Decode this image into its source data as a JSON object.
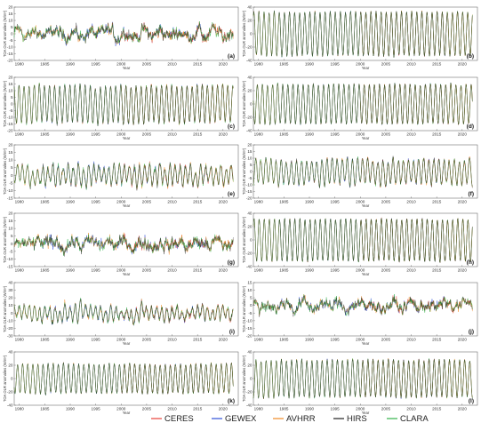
{
  "chart_data": {
    "type": "line",
    "grid": false,
    "legend": {
      "placement": "bottom"
    },
    "xlabel": "Year",
    "ylabel": "TOA OLR anomalies (W/m²)",
    "xlim": [
      1979,
      2023
    ],
    "xticks": [
      1980,
      1985,
      1990,
      1995,
      2000,
      2005,
      2010,
      2015,
      2020
    ],
    "series": [
      {
        "name": "CERES",
        "color": "#e8413a",
        "start": 2000,
        "end": 2022
      },
      {
        "name": "GEWEX",
        "color": "#2f4fd8",
        "start": 1984,
        "end": 2017
      },
      {
        "name": "AVHRR",
        "color": "#f08a24",
        "start": 1979,
        "end": 2022
      },
      {
        "name": "HIRS",
        "color": "#222222",
        "start": 1979,
        "end": 2022
      },
      {
        "name": "CLARA",
        "color": "#33b24a",
        "start": 1979,
        "end": 2022
      }
    ],
    "panels": [
      {
        "label": "(a)",
        "ylim": [
          -20,
          20
        ],
        "yticks": [
          -20,
          -15,
          -10,
          -5,
          0,
          5,
          10,
          15,
          20
        ],
        "amplitude": 4,
        "noise": 5,
        "seasonal": false
      },
      {
        "label": "(b)",
        "ylim": [
          -40,
          40
        ],
        "yticks": [
          -40,
          -20,
          0,
          20,
          40
        ],
        "amplitude": 33,
        "noise": 1.5,
        "seasonal": true
      },
      {
        "label": "(c)",
        "ylim": [
          -20,
          20
        ],
        "yticks": [
          -20,
          -15,
          -10,
          -5,
          0,
          5,
          10,
          15,
          20
        ],
        "amplitude": 14,
        "noise": 1.5,
        "seasonal": true
      },
      {
        "label": "(d)",
        "ylim": [
          -40,
          40
        ],
        "yticks": [
          -40,
          -20,
          0,
          20,
          40
        ],
        "amplitude": 30,
        "noise": 1.5,
        "seasonal": true
      },
      {
        "label": "(e)",
        "ylim": [
          -15,
          20
        ],
        "yticks": [
          -15,
          -10,
          -5,
          0,
          5,
          10,
          15,
          20
        ],
        "amplitude": 6,
        "noise": 3,
        "seasonal": true
      },
      {
        "label": "(f)",
        "ylim": [
          -20,
          20
        ],
        "yticks": [
          -20,
          -15,
          -10,
          -5,
          0,
          5,
          10,
          15,
          20
        ],
        "amplitude": 9,
        "noise": 2.5,
        "seasonal": true
      },
      {
        "label": "(g)",
        "ylim": [
          -15,
          20
        ],
        "yticks": [
          -15,
          -10,
          -5,
          0,
          5,
          10,
          15,
          20
        ],
        "amplitude": 2,
        "noise": 4.5,
        "seasonal": false
      },
      {
        "label": "(h)",
        "ylim": [
          -40,
          40
        ],
        "yticks": [
          -40,
          -20,
          0,
          20,
          40
        ],
        "amplitude": 32,
        "noise": 1.5,
        "seasonal": true
      },
      {
        "label": "(i)",
        "ylim": [
          -30,
          40
        ],
        "yticks": [
          -30,
          -20,
          -10,
          0,
          10,
          20,
          30,
          40
        ],
        "amplitude": 8,
        "noise": 6,
        "seasonal": true
      },
      {
        "label": "(j)",
        "ylim": [
          -20,
          15
        ],
        "yticks": [
          -20,
          -15,
          -10,
          -5,
          0,
          5,
          10,
          15
        ],
        "amplitude": 3,
        "noise": 4,
        "seasonal": false
      },
      {
        "label": "(k)",
        "ylim": [
          -40,
          40
        ],
        "yticks": [
          -40,
          -20,
          0,
          20,
          40
        ],
        "amplitude": 22,
        "noise": 2,
        "seasonal": true
      },
      {
        "label": "(l)",
        "ylim": [
          -40,
          40
        ],
        "yticks": [
          -40,
          -20,
          0,
          20,
          40
        ],
        "amplitude": 28,
        "noise": 2,
        "seasonal": true
      }
    ]
  }
}
